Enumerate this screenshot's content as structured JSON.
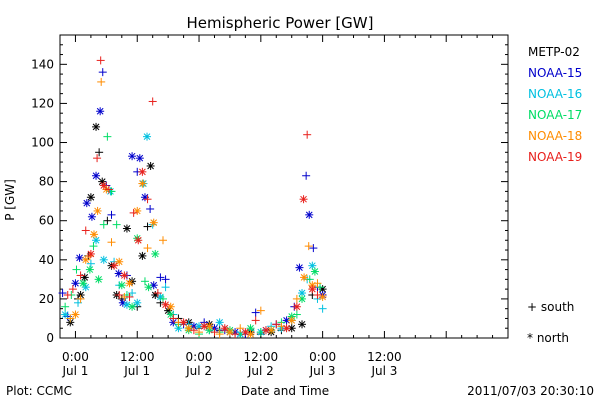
{
  "chart_data": {
    "type": "scatter",
    "title": "Hemispheric Power [GW]",
    "xlabel": "Date and Time",
    "ylabel": "P [GW]",
    "footer_left": "Plot: CCMC",
    "footer_right": "2011/07/03 20:30:10",
    "x_unit": "hours since 2011-07-01 00:00 UT",
    "xlim": [
      -3,
      84
    ],
    "ylim": [
      0,
      155
    ],
    "y_ticks": [
      0,
      20,
      40,
      60,
      80,
      100,
      120,
      140
    ],
    "x_ticks": [
      {
        "x": 0,
        "time": "0:00",
        "day": "Jul 1"
      },
      {
        "x": 12,
        "time": "12:00",
        "day": "Jul 1"
      },
      {
        "x": 24,
        "time": "0:00",
        "day": "Jul 2"
      },
      {
        "x": 36,
        "time": "12:00",
        "day": "Jul 2"
      },
      {
        "x": 48,
        "time": "0:00",
        "day": "Jul 3"
      },
      {
        "x": 60,
        "time": "12:00",
        "day": "Jul 3"
      }
    ],
    "marker_legend": [
      {
        "symbol": "+",
        "label": "+ south"
      },
      {
        "symbol": "*",
        "label": "* north"
      }
    ],
    "series": [
      {
        "name": "METP-02",
        "color": "#000000",
        "points": [
          [
            -1,
            8,
            "n"
          ],
          [
            0.5,
            20,
            "s"
          ],
          [
            1,
            22,
            "n"
          ],
          [
            1.8,
            31,
            "n"
          ],
          [
            2.5,
            42,
            "s"
          ],
          [
            3,
            72,
            "n"
          ],
          [
            4,
            108,
            "n"
          ],
          [
            4.6,
            95,
            "s"
          ],
          [
            5.2,
            80,
            "n"
          ],
          [
            6.2,
            60,
            "s"
          ],
          [
            7,
            37,
            "n"
          ],
          [
            8,
            22,
            "n"
          ],
          [
            9,
            20,
            "s"
          ],
          [
            10,
            56,
            "n"
          ],
          [
            11,
            29,
            "n"
          ],
          [
            12,
            16,
            "s"
          ],
          [
            13,
            42,
            "n"
          ],
          [
            14,
            57,
            "s"
          ],
          [
            14.6,
            88,
            "n"
          ],
          [
            15.5,
            22,
            "n"
          ],
          [
            16.5,
            18,
            "s"
          ],
          [
            18,
            14,
            "n"
          ],
          [
            20,
            10,
            "s"
          ],
          [
            22,
            8,
            "n"
          ],
          [
            24,
            5,
            "s"
          ],
          [
            26,
            7,
            "n"
          ],
          [
            28,
            4,
            "s"
          ],
          [
            30,
            3,
            "n"
          ],
          [
            32,
            2,
            "s"
          ],
          [
            34,
            3,
            "n"
          ],
          [
            36,
            2,
            "s"
          ],
          [
            38,
            3,
            "n"
          ],
          [
            40,
            4,
            "s"
          ],
          [
            42,
            5,
            "n"
          ],
          [
            44,
            7,
            "n"
          ],
          [
            46,
            22,
            "s"
          ],
          [
            48,
            25,
            "n"
          ]
        ]
      },
      {
        "name": "NOAA-15",
        "color": "#0000cc",
        "points": [
          [
            -2.5,
            23,
            "s"
          ],
          [
            -1.5,
            11,
            "s"
          ],
          [
            0,
            28,
            "n"
          ],
          [
            0.8,
            41,
            "n"
          ],
          [
            2.2,
            69,
            "n"
          ],
          [
            3.2,
            62,
            "n"
          ],
          [
            4,
            83,
            "n"
          ],
          [
            4.8,
            116,
            "n"
          ],
          [
            5.3,
            136,
            "s"
          ],
          [
            6,
            78,
            "s"
          ],
          [
            7,
            63,
            "s"
          ],
          [
            8.4,
            33,
            "n"
          ],
          [
            9.2,
            18,
            "n"
          ],
          [
            10,
            32,
            "s"
          ],
          [
            11,
            93,
            "n"
          ],
          [
            12,
            85,
            "s"
          ],
          [
            12.5,
            92,
            "n"
          ],
          [
            13.5,
            72,
            "n"
          ],
          [
            14.5,
            66,
            "s"
          ],
          [
            15.2,
            27,
            "n"
          ],
          [
            16.5,
            31,
            "s"
          ],
          [
            17.5,
            30,
            "s"
          ],
          [
            19,
            8,
            "n"
          ],
          [
            21,
            7,
            "s"
          ],
          [
            23,
            6,
            "n"
          ],
          [
            25,
            8,
            "s"
          ],
          [
            27,
            5,
            "n"
          ],
          [
            29,
            4,
            "s"
          ],
          [
            31,
            3,
            "n"
          ],
          [
            33,
            2,
            "s"
          ],
          [
            35,
            13,
            "s"
          ],
          [
            37,
            4,
            "n"
          ],
          [
            39,
            7,
            "s"
          ],
          [
            41,
            9,
            "n"
          ],
          [
            42.5,
            16,
            "s"
          ],
          [
            43.5,
            36,
            "n"
          ],
          [
            44.8,
            83,
            "s"
          ],
          [
            45.4,
            63,
            "n"
          ],
          [
            46.2,
            46,
            "s"
          ],
          [
            47,
            26,
            "s"
          ],
          [
            48,
            22,
            "n"
          ]
        ]
      },
      {
        "name": "NOAA-16",
        "color": "#00c0e0",
        "points": [
          [
            -2,
            12,
            "n"
          ],
          [
            -1,
            10,
            "s"
          ],
          [
            0.5,
            18,
            "s"
          ],
          [
            2,
            26,
            "n"
          ],
          [
            3,
            38,
            "s"
          ],
          [
            4,
            50,
            "n"
          ],
          [
            5.5,
            40,
            "n"
          ],
          [
            6.8,
            75,
            "n"
          ],
          [
            7.5,
            39,
            "s"
          ],
          [
            8.5,
            27,
            "s"
          ],
          [
            10,
            17,
            "n"
          ],
          [
            11,
            23,
            "s"
          ],
          [
            12,
            18,
            "n"
          ],
          [
            13.2,
            79,
            "n"
          ],
          [
            13.9,
            103,
            "n"
          ],
          [
            15,
            58,
            "s"
          ],
          [
            16.5,
            21,
            "n"
          ],
          [
            17.5,
            26,
            "s"
          ],
          [
            19,
            12,
            "s"
          ],
          [
            20,
            5,
            "n"
          ],
          [
            22,
            7,
            "s"
          ],
          [
            24,
            6,
            "n"
          ],
          [
            26,
            4,
            "s"
          ],
          [
            28,
            8,
            "n"
          ],
          [
            30,
            3,
            "s"
          ],
          [
            32,
            2,
            "n"
          ],
          [
            34,
            4,
            "s"
          ],
          [
            36,
            3,
            "n"
          ],
          [
            38,
            6,
            "s"
          ],
          [
            40,
            5,
            "n"
          ],
          [
            42,
            9,
            "s"
          ],
          [
            44,
            23,
            "n"
          ],
          [
            45,
            30,
            "s"
          ],
          [
            46,
            37,
            "n"
          ],
          [
            47,
            20,
            "s"
          ],
          [
            48,
            15,
            "s"
          ]
        ]
      },
      {
        "name": "NOAA-17",
        "color": "#00dd66",
        "points": [
          [
            -2,
            16,
            "s"
          ],
          [
            -0.8,
            22,
            "s"
          ],
          [
            0.2,
            35,
            "s"
          ],
          [
            1.5,
            28,
            "n"
          ],
          [
            2.8,
            35,
            "n"
          ],
          [
            3.5,
            47,
            "s"
          ],
          [
            4.5,
            30,
            "n"
          ],
          [
            5.5,
            58,
            "s"
          ],
          [
            6.2,
            103,
            "s"
          ],
          [
            7,
            75,
            "s"
          ],
          [
            8,
            58,
            "s"
          ],
          [
            9,
            27,
            "n"
          ],
          [
            10,
            22,
            "s"
          ],
          [
            11,
            16,
            "n"
          ],
          [
            12,
            51,
            "n"
          ],
          [
            13.5,
            29,
            "s"
          ],
          [
            14.2,
            26,
            "n"
          ],
          [
            15.5,
            43,
            "n"
          ],
          [
            17,
            20,
            "s"
          ],
          [
            18.5,
            12,
            "n"
          ],
          [
            20,
            7,
            "s"
          ],
          [
            22,
            4,
            "n"
          ],
          [
            24,
            2,
            "s"
          ],
          [
            26,
            4,
            "n"
          ],
          [
            28,
            3,
            "s"
          ],
          [
            30,
            4,
            "n"
          ],
          [
            32,
            2,
            "s"
          ],
          [
            34,
            5,
            "n"
          ],
          [
            36,
            3,
            "s"
          ],
          [
            38,
            4,
            "n"
          ],
          [
            40,
            8,
            "s"
          ],
          [
            42,
            11,
            "n"
          ],
          [
            43,
            12,
            "s"
          ],
          [
            44,
            20,
            "n"
          ],
          [
            45.5,
            30,
            "s"
          ],
          [
            46.5,
            34,
            "n"
          ],
          [
            47.5,
            26,
            "s"
          ]
        ]
      },
      {
        "name": "NOAA-18",
        "color": "#ff8c00",
        "points": [
          [
            -1,
            10,
            "s"
          ],
          [
            0,
            12,
            "n"
          ],
          [
            1,
            20,
            "s"
          ],
          [
            2,
            40,
            "n"
          ],
          [
            2.8,
            42,
            "s"
          ],
          [
            3.6,
            53,
            "n"
          ],
          [
            4.3,
            65,
            "n"
          ],
          [
            5,
            131,
            "s"
          ],
          [
            6,
            76,
            "n"
          ],
          [
            7,
            49,
            "s"
          ],
          [
            8.5,
            39,
            "n"
          ],
          [
            9.5,
            21,
            "s"
          ],
          [
            10.5,
            28,
            "n"
          ],
          [
            12,
            65,
            "n"
          ],
          [
            13,
            79,
            "n"
          ],
          [
            14,
            46,
            "s"
          ],
          [
            15.2,
            59,
            "n"
          ],
          [
            17,
            50,
            "s"
          ],
          [
            18.5,
            16,
            "n"
          ],
          [
            20,
            8,
            "s"
          ],
          [
            22,
            5,
            "n"
          ],
          [
            24,
            3,
            "s"
          ],
          [
            26,
            6,
            "n"
          ],
          [
            28,
            2,
            "s"
          ],
          [
            30,
            3,
            "n"
          ],
          [
            32,
            5,
            "s"
          ],
          [
            34,
            2,
            "n"
          ],
          [
            36,
            14,
            "s"
          ],
          [
            38,
            4,
            "n"
          ],
          [
            40,
            6,
            "s"
          ],
          [
            42,
            9,
            "n"
          ],
          [
            43,
            20,
            "s"
          ],
          [
            44.4,
            31,
            "n"
          ],
          [
            45.3,
            47,
            "s"
          ],
          [
            46,
            27,
            "n"
          ],
          [
            47,
            28,
            "s"
          ],
          [
            48,
            21,
            "n"
          ]
        ]
      },
      {
        "name": "NOAA-19",
        "color": "#e8201c",
        "points": [
          [
            -1.5,
            22,
            "s"
          ],
          [
            -0.5,
            25,
            "s"
          ],
          [
            1,
            32,
            "s"
          ],
          [
            2,
            55,
            "s"
          ],
          [
            3,
            43,
            "n"
          ],
          [
            4.2,
            92,
            "s"
          ],
          [
            4.9,
            142,
            "s"
          ],
          [
            5.5,
            78,
            "n"
          ],
          [
            6.5,
            76,
            "s"
          ],
          [
            7.5,
            37,
            "n"
          ],
          [
            8.5,
            22,
            "s"
          ],
          [
            9.5,
            32,
            "n"
          ],
          [
            10.5,
            21,
            "s"
          ],
          [
            11.3,
            64,
            "s"
          ],
          [
            12.2,
            50,
            "n"
          ],
          [
            13,
            85,
            "n"
          ],
          [
            14,
            71,
            "s"
          ],
          [
            15,
            121,
            "s"
          ],
          [
            16,
            23,
            "s"
          ],
          [
            17.5,
            17,
            "n"
          ],
          [
            19,
            10,
            "s"
          ],
          [
            21,
            8,
            "n"
          ],
          [
            23,
            4,
            "s"
          ],
          [
            25,
            6,
            "n"
          ],
          [
            27,
            3,
            "s"
          ],
          [
            29,
            5,
            "n"
          ],
          [
            31,
            2,
            "s"
          ],
          [
            33,
            3,
            "n"
          ],
          [
            35,
            9,
            "s"
          ],
          [
            37,
            4,
            "n"
          ],
          [
            39,
            7,
            "s"
          ],
          [
            41,
            5,
            "n"
          ],
          [
            43,
            16,
            "n"
          ],
          [
            44.3,
            71,
            "n"
          ],
          [
            45,
            104,
            "s"
          ],
          [
            46,
            25,
            "n"
          ],
          [
            47,
            22,
            "s"
          ]
        ]
      }
    ]
  }
}
